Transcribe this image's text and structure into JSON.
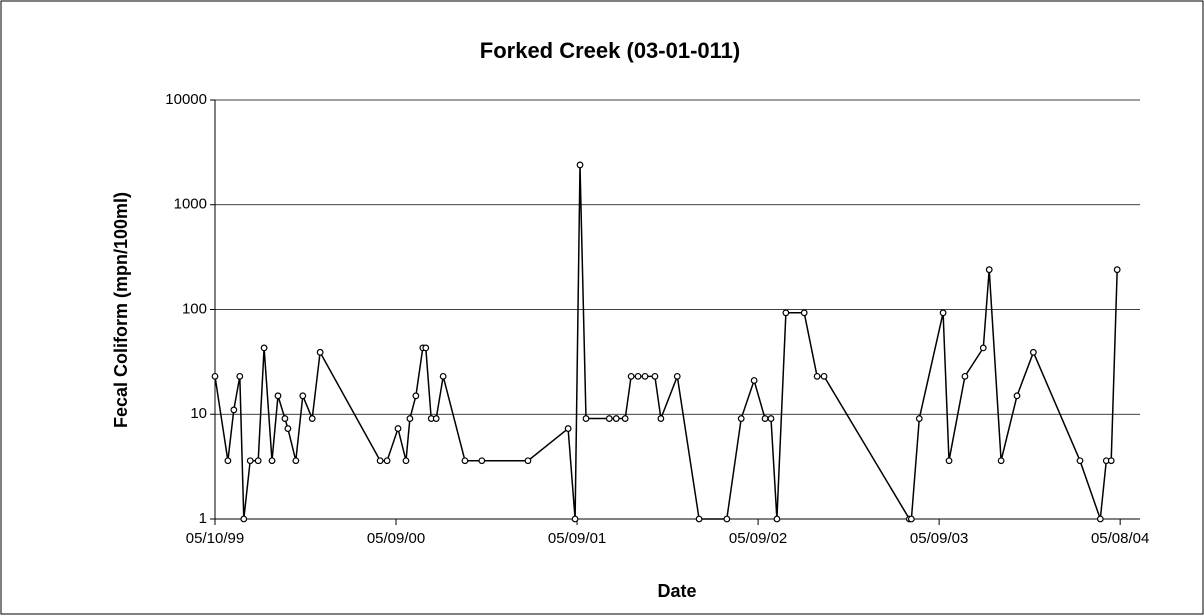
{
  "chart_data": {
    "type": "line",
    "title": "Forked Creek (03-01-011)",
    "x_label": "Date",
    "y_label": "Fecal Coliform (mpn/100ml)",
    "y_scale": "log",
    "grid": true,
    "xlim": [
      "1999-05-10",
      "2004-06-17"
    ],
    "xticks": [
      {
        "value": "1999-05-10",
        "label": "05/10/99"
      },
      {
        "value": "2000-05-09",
        "label": "05/09/00"
      },
      {
        "value": "2001-05-09",
        "label": "05/09/01"
      },
      {
        "value": "2002-05-09",
        "label": "05/09/02"
      },
      {
        "value": "2003-05-09",
        "label": "05/09/03"
      },
      {
        "value": "2004-05-08",
        "label": "05/08/04"
      }
    ],
    "ylim": [
      1,
      10000
    ],
    "yticks": [
      1,
      10,
      100,
      1000,
      10000
    ],
    "series": [
      {
        "color": "#000000",
        "x": [
          "1999-05-10",
          "1999-06-05",
          "1999-06-17",
          "1999-06-29",
          "1999-07-07",
          "1999-07-20",
          "1999-08-05",
          "1999-08-17",
          "1999-09-02",
          "1999-09-14",
          "1999-09-28",
          "1999-10-04",
          "1999-10-20",
          "1999-11-03",
          "1999-11-22",
          "1999-12-08",
          "2000-04-07",
          "2000-04-21",
          "2000-05-13",
          "2000-05-29",
          "2000-06-06",
          "2000-06-18",
          "2000-07-02",
          "2000-07-08",
          "2000-07-19",
          "2000-07-29",
          "2000-08-12",
          "2000-09-25",
          "2000-10-29",
          "2001-01-30",
          "2001-04-21",
          "2001-05-05",
          "2001-05-15",
          "2001-05-27",
          "2001-07-13",
          "2001-07-27",
          "2001-08-14",
          "2001-08-26",
          "2001-09-09",
          "2001-09-23",
          "2001-10-13",
          "2001-10-25",
          "2001-11-27",
          "2002-01-10",
          "2002-03-07",
          "2002-04-05",
          "2002-05-01",
          "2002-05-23",
          "2002-06-04",
          "2002-06-16",
          "2002-07-04",
          "2002-08-10",
          "2002-09-05",
          "2002-09-19",
          "2003-03-10",
          "2003-03-14",
          "2003-03-30",
          "2003-05-17",
          "2003-05-29",
          "2003-06-30",
          "2003-08-06",
          "2003-08-18",
          "2003-09-11",
          "2003-10-13",
          "2003-11-15",
          "2004-02-17",
          "2004-03-29",
          "2004-04-10",
          "2004-04-20",
          "2004-05-02"
        ],
        "values": [
          23,
          3.6,
          11,
          23,
          1,
          3.6,
          3.6,
          43,
          3.6,
          15,
          9.1,
          7.3,
          3.6,
          15,
          9.1,
          39,
          3.6,
          3.6,
          7.3,
          3.6,
          9.1,
          15,
          43,
          43,
          9.1,
          9.1,
          23,
          3.6,
          3.6,
          3.6,
          7.3,
          1,
          2400,
          9.1,
          9.1,
          9.1,
          9.1,
          23,
          23,
          23,
          23,
          9.1,
          23,
          1,
          1,
          9.1,
          21,
          9.1,
          9.1,
          1,
          93,
          93,
          23,
          23,
          1,
          1,
          9.1,
          93,
          3.6,
          23,
          43,
          240,
          3.6,
          15,
          39,
          3.6,
          1,
          3.6,
          3.6,
          240
        ]
      }
    ]
  }
}
